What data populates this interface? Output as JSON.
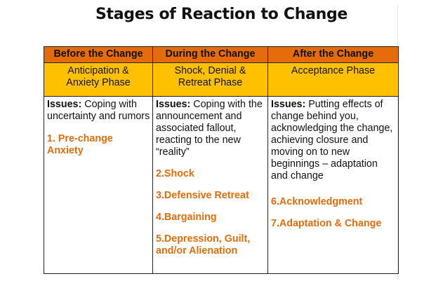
{
  "title": "Stages of Reaction to Change",
  "table": {
    "headers": [
      "Before the Change",
      "During the Change",
      "After the Change"
    ],
    "phases": [
      "Anticipation & Anxiety Phase",
      "Shock, Denial & Retreat Phase",
      "Acceptance Phase"
    ],
    "columns": [
      {
        "issues": {
          "label": "Issues:",
          "text": "Coping with uncertainty and rumors"
        },
        "stages": [
          "1. Pre-change Anxiety"
        ]
      },
      {
        "issues": {
          "label": "Issues:",
          "text": "Coping with the announcement and associated fallout, reacting to the new “reality”"
        },
        "stages": [
          "2.Shock",
          "3.Defensive Retreat",
          "4.Bargaining",
          "5.Depression, Guilt, and/or Alienation"
        ]
      },
      {
        "issues": {
          "label": "Issues:",
          "text": "Putting effects of change behind you, acknowledging the change, achieving closure and moving on to new beginnings – adaptation and change"
        },
        "stages": [
          "6.Acknowledgment",
          "7.Adaptation & Change"
        ]
      }
    ]
  }
}
